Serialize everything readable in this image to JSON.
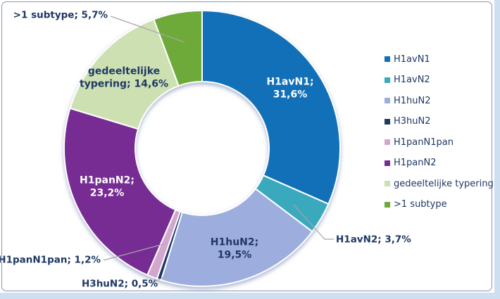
{
  "chart_data": {
    "type": "pie",
    "subtype": "donut",
    "title": "",
    "unit": "%",
    "number_format": "comma-decimal",
    "start_angle_deg": 0,
    "direction": "clockwise",
    "legend_position": "right",
    "categories": [
      "H1avN1",
      "H1avN2",
      "H1huN2",
      "H3huN2",
      "H1panN1pan",
      "H1panN2",
      "gedeeltelijke typering",
      ">1 subtype"
    ],
    "values": [
      31.6,
      3.7,
      19.5,
      0.5,
      1.2,
      23.2,
      14.6,
      5.7
    ],
    "slices": [
      {
        "label": "H1avN1",
        "value": 31.6,
        "color": "#1170B8",
        "data_label_lines": [
          "H1avN1;",
          "31,6%"
        ],
        "label_placement": "inside"
      },
      {
        "label": "H1avN2",
        "value": 3.7,
        "color": "#3AA9BD",
        "data_label_lines": [
          "H1avN2; 3,7%"
        ],
        "label_placement": "outside"
      },
      {
        "label": "H1huN2",
        "value": 19.5,
        "color": "#9DAEDE",
        "data_label_lines": [
          "H1huN2;",
          "19,5%"
        ],
        "label_placement": "inside"
      },
      {
        "label": "H3huN2",
        "value": 0.5,
        "color": "#203864",
        "data_label_lines": [
          "H3huN2; 0,5%"
        ],
        "label_placement": "outside"
      },
      {
        "label": "H1panN1pan",
        "value": 1.2,
        "color": "#D2A7CE",
        "data_label_lines": [
          "H1panN1pan; 1,2%"
        ],
        "label_placement": "outside"
      },
      {
        "label": "H1panN2",
        "value": 23.2,
        "color": "#772C93",
        "data_label_lines": [
          "H1panN2;",
          "23,2%"
        ],
        "label_placement": "inside"
      },
      {
        "label": "gedeeltelijke typering",
        "value": 14.6,
        "color": "#CCE0B2",
        "data_label_lines": [
          "gedeeltelijke",
          "typering; 14,6%"
        ],
        "label_placement": "inside"
      },
      {
        "label": ">1 subtype",
        "value": 5.7,
        "color": "#6EAA39",
        "data_label_lines": [
          ">1 subtype; 5,7%"
        ],
        "label_placement": "outside"
      }
    ]
  },
  "style": {
    "label_text_color": "#1F3864",
    "inside_light_label_color": "#FFFFFF",
    "leader_line_color": "#A6A6A6",
    "frame_border_color": "#8497B4",
    "outer_strip_color": "#CFDFF2",
    "background_color": "#FFFFFF"
  }
}
